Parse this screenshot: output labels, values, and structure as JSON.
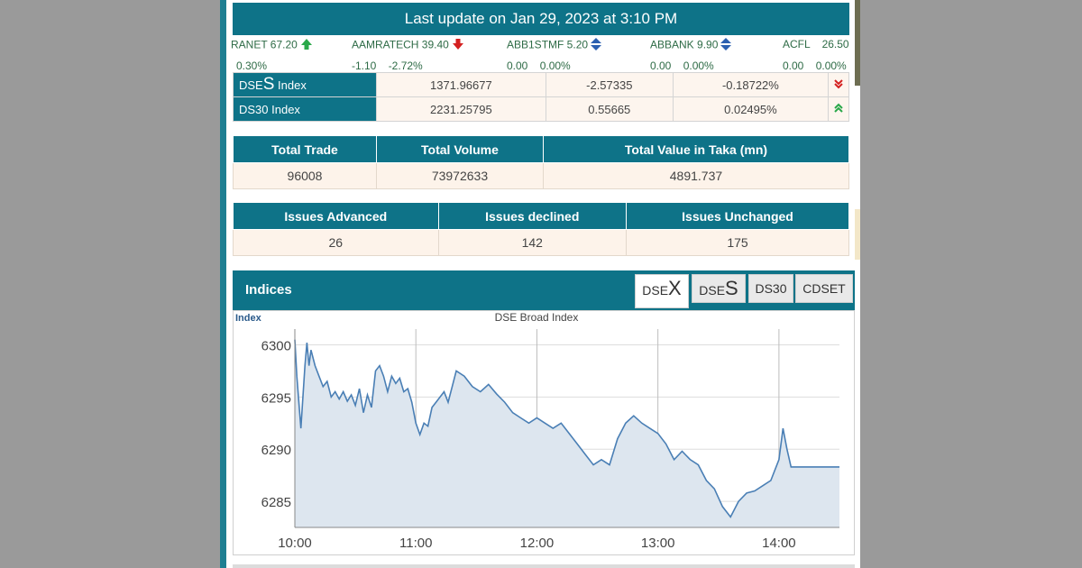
{
  "header": {
    "update_text": "Last update on Jan 29, 2023 at 3:10 PM"
  },
  "ticker": [
    {
      "name": "RANET 67.20",
      "change": "0.30%",
      "dir": "up"
    },
    {
      "name": "AAMRATECH 39.40",
      "change": "-1.10    -2.72%",
      "dir": "down"
    },
    {
      "name": "ABB1STMF 5.20",
      "change": "0.00    0.00%",
      "dir": "flat"
    },
    {
      "name": "ABBANK 9.90",
      "change": "0.00    0.00%",
      "dir": "flat"
    },
    {
      "name": "ACFL    26.50",
      "change": "0.00    0.00%",
      "dir": "none"
    }
  ],
  "indices_table": [
    {
      "prefix": "DSE",
      "big": "S",
      "suffix": " Index",
      "value": "1371.96677",
      "change": "-2.57335",
      "percent": "-0.18722%",
      "dir": "down"
    },
    {
      "prefix": "DS30 Index",
      "big": "",
      "suffix": "",
      "value": "2231.25795",
      "change": "0.55665",
      "percent": "0.02495%",
      "dir": "up"
    }
  ],
  "trade_stats": {
    "headers": [
      "Total Trade",
      "Total Volume",
      "Total Value in Taka (mn)"
    ],
    "values": [
      "96008",
      "73972633",
      "4891.737"
    ]
  },
  "issue_stats": {
    "headers": [
      "Issues Advanced",
      "Issues declined",
      "Issues Unchanged"
    ],
    "values": [
      "26",
      "142",
      "175"
    ]
  },
  "indices_panel": {
    "title": "Indices",
    "tabs": [
      {
        "prefix": "DSE",
        "big": "X",
        "active": true
      },
      {
        "prefix": "DSE",
        "big": "S",
        "active": false
      },
      {
        "prefix": "DS30",
        "big": "",
        "active": false
      },
      {
        "prefix": "CDSET",
        "big": "",
        "active": false
      }
    ]
  },
  "colors": {
    "accent": "#0e7388",
    "series_line": "#4a7fb5",
    "series_fill": "#dde6ef",
    "up": "#2aa84a",
    "down": "#d42020",
    "flat": "#2b5fb0"
  },
  "chart_data": {
    "type": "area",
    "title": "DSE Broad Index",
    "ylabel": "Index",
    "xlabel": "",
    "x_ticks": [
      "10:00",
      "11:00",
      "12:00",
      "13:00",
      "14:00"
    ],
    "y_ticks": [
      6285,
      6290,
      6295,
      6300
    ],
    "xlim": [
      "10:00",
      "14:30"
    ],
    "ylim": [
      6282.5,
      6302.2
    ],
    "grid": true,
    "series": [
      {
        "x": [
          "10:00",
          "10:01",
          "10:03",
          "10:05",
          "10:06",
          "10:07",
          "10:08",
          "10:10",
          "10:12",
          "10:14",
          "10:16",
          "10:18",
          "10:20",
          "10:22",
          "10:24",
          "10:26",
          "10:28",
          "10:30",
          "10:32",
          "10:34",
          "10:36",
          "10:38",
          "10:40",
          "10:42",
          "10:44",
          "10:46",
          "10:48",
          "10:50",
          "10:52",
          "10:54",
          "10:56",
          "10:58",
          "11:00",
          "11:02",
          "11:04",
          "11:06",
          "11:08",
          "11:10",
          "11:12",
          "11:14",
          "11:16",
          "11:18",
          "11:20",
          "11:24",
          "11:28",
          "11:32",
          "11:36",
          "11:40",
          "11:44",
          "11:48",
          "11:52",
          "11:56",
          "12:00",
          "12:04",
          "12:08",
          "12:12",
          "12:16",
          "12:20",
          "12:24",
          "12:28",
          "12:32",
          "12:36",
          "12:40",
          "12:44",
          "12:48",
          "12:52",
          "12:56",
          "13:00",
          "13:04",
          "13:08",
          "13:12",
          "13:16",
          "13:20",
          "13:24",
          "13:28",
          "13:32",
          "13:36",
          "13:40",
          "13:44",
          "13:48",
          "13:52",
          "13:56",
          "14:00",
          "14:02",
          "14:04",
          "14:06",
          "14:08",
          "14:10",
          "14:12",
          "14:14",
          "14:16",
          "14:18",
          "14:20",
          "14:30"
        ],
        "y": [
          6300.5,
          6297,
          6292,
          6298,
          6300.2,
          6298,
          6299.5,
          6298,
          6297,
          6296,
          6296.5,
          6295,
          6295.5,
          6294.8,
          6295.5,
          6294.6,
          6295.2,
          6294.2,
          6295.8,
          6293.5,
          6295.2,
          6294,
          6297.5,
          6298,
          6297,
          6295.5,
          6297,
          6296.3,
          6296.8,
          6295.5,
          6295.8,
          6294.5,
          6292.5,
          6291.4,
          6292.5,
          6292.2,
          6294,
          6294.5,
          6295,
          6295.5,
          6294.5,
          6296,
          6297.5,
          6297,
          6296,
          6295.5,
          6296.2,
          6295.3,
          6294.5,
          6293.5,
          6293,
          6292.5,
          6293,
          6292.5,
          6292,
          6292.5,
          6291.5,
          6290.5,
          6289.5,
          6288.5,
          6289,
          6288.5,
          6291,
          6292.5,
          6293.2,
          6292.5,
          6292,
          6291.5,
          6290.5,
          6289,
          6289.8,
          6289,
          6288.5,
          6287,
          6286.2,
          6284.5,
          6283.5,
          6285,
          6285.8,
          6286,
          6286.5,
          6287,
          6289,
          6292,
          6290,
          6288.3,
          6288.3,
          6288.3,
          6288.3,
          6288.3,
          6288.3,
          6288.3,
          6288.3,
          6288.3
        ]
      }
    ]
  }
}
